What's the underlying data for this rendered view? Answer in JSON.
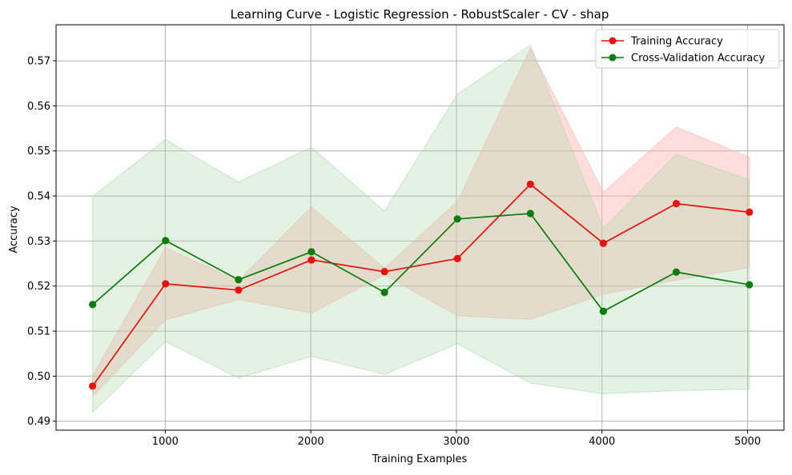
{
  "chart_data": {
    "type": "line",
    "title": "Learning Curve - Logistic Regression - RobustScaler - CV - shap",
    "xlabel": "Training Examples",
    "ylabel": "Accuracy",
    "xlim": [
      250,
      5250
    ],
    "ylim": [
      0.488,
      0.578
    ],
    "xticks": [
      1000,
      2000,
      3000,
      4000,
      5000
    ],
    "yticks": [
      0.49,
      0.5,
      0.51,
      0.52,
      0.53,
      0.54,
      0.55,
      0.56,
      0.57
    ],
    "ytick_labels": [
      "0.49",
      "0.50",
      "0.51",
      "0.52",
      "0.53",
      "0.54",
      "0.55",
      "0.56",
      "0.57"
    ],
    "grid": true,
    "legend_position": "top-right",
    "x": [
      501,
      1002,
      1503,
      2004,
      2506,
      3007,
      3508,
      4009,
      4510,
      5012
    ],
    "series": [
      {
        "name": "Training Accuracy",
        "color": "#e8120c",
        "fill_color": "#ffb3b3",
        "values": [
          0.4978,
          0.5205,
          0.5191,
          0.5258,
          0.5232,
          0.5261,
          0.5426,
          0.5295,
          0.5383,
          0.5364
        ],
        "band_upper": [
          0.5001,
          0.5285,
          0.5212,
          0.5375,
          0.524,
          0.5388,
          0.5728,
          0.5408,
          0.5553,
          0.5486
        ],
        "band_lower": [
          0.4955,
          0.5125,
          0.517,
          0.514,
          0.5225,
          0.5134,
          0.5126,
          0.5182,
          0.5213,
          0.5241
        ]
      },
      {
        "name": "Cross-Validation Accuracy",
        "color": "#0a7d0a",
        "fill_color": "#a8d8a8",
        "values": [
          0.5159,
          0.5301,
          0.5214,
          0.5276,
          0.5186,
          0.5349,
          0.5361,
          0.5144,
          0.5231,
          0.5203
        ],
        "band_upper": [
          0.5399,
          0.5525,
          0.5431,
          0.5508,
          0.5366,
          0.5626,
          0.5735,
          0.5328,
          0.5492,
          0.5436
        ],
        "band_lower": [
          0.492,
          0.5077,
          0.4996,
          0.5044,
          0.5004,
          0.5072,
          0.4985,
          0.4961,
          0.4968,
          0.4971
        ]
      }
    ]
  }
}
